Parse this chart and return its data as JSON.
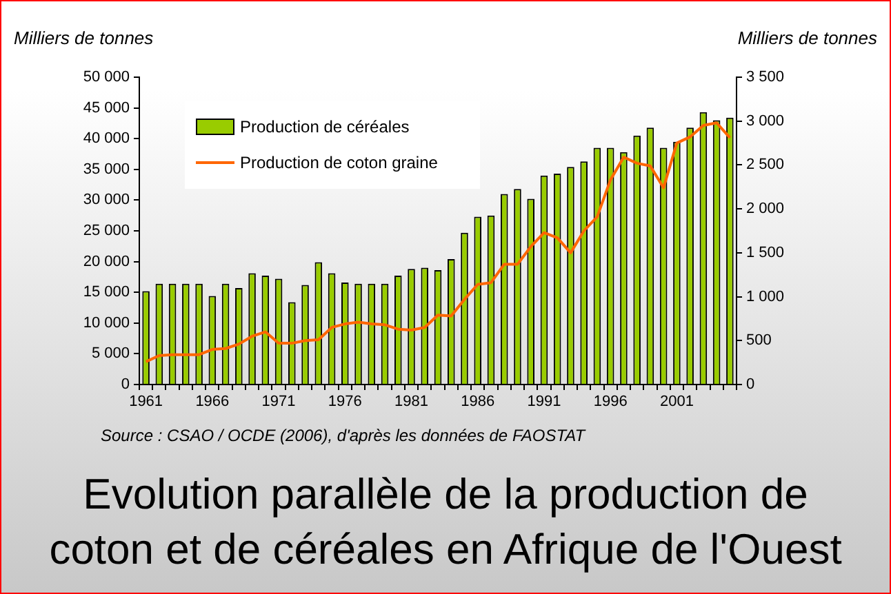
{
  "chart_data": {
    "type": "bar",
    "title": "Evolution parallèle de la production de coton et de céréales en Afrique de l'Ouest",
    "ylabel": "Milliers de tonnes",
    "y2label": "Milliers de tonnes",
    "annotations": [
      "Source : CSAO  / OCDE (2006), d'après les données de FAOSTAT"
    ],
    "categories": [
      "1961",
      null,
      null,
      null,
      null,
      "1966",
      null,
      null,
      null,
      null,
      "1971",
      null,
      null,
      null,
      null,
      "1976",
      null,
      null,
      null,
      null,
      "1981",
      null,
      null,
      null,
      null,
      "1986",
      null,
      null,
      null,
      null,
      "1991",
      null,
      null,
      null,
      null,
      "1996",
      null,
      null,
      null,
      null,
      "2001",
      null,
      null,
      null,
      null
    ],
    "series": [
      {
        "name": "Production de céréales",
        "color": "#99cc00",
        "values": [
          15200,
          16400,
          16400,
          16400,
          16400,
          14400,
          16400,
          15700,
          18100,
          17700,
          17200,
          13400,
          16200,
          19900,
          18100,
          16600,
          16400,
          16400,
          16400,
          17700,
          18800,
          19000,
          18600,
          20400,
          24700,
          27300,
          27500,
          31000,
          31800,
          30200,
          34000,
          34300,
          35400,
          36300,
          38500,
          38500,
          37800,
          40500,
          41800,
          38500,
          39500,
          41800,
          44300,
          43000,
          43400
        ]
      },
      {
        "name": "Production de coton graine",
        "type": "line",
        "axis": "y2",
        "color": "#ff6600",
        "values": [
          260,
          330,
          340,
          340,
          340,
          400,
          410,
          460,
          550,
          600,
          470,
          470,
          500,
          510,
          650,
          690,
          710,
          690,
          680,
          630,
          620,
          650,
          790,
          780,
          970,
          1140,
          1160,
          1370,
          1370,
          1570,
          1730,
          1670,
          1500,
          1750,
          1910,
          2330,
          2590,
          2520,
          2490,
          2240,
          2750,
          2820,
          2950,
          2980,
          2810
        ]
      }
    ],
    "ylim": [
      0,
      50000
    ],
    "yticks": [
      0,
      5000,
      10000,
      15000,
      20000,
      25000,
      30000,
      35000,
      40000,
      45000,
      50000
    ],
    "y2lim": [
      0,
      3500
    ],
    "y2ticks": [
      0,
      500,
      1000,
      1500,
      2000,
      2500,
      3000,
      3500
    ],
    "legend": "top left"
  }
}
